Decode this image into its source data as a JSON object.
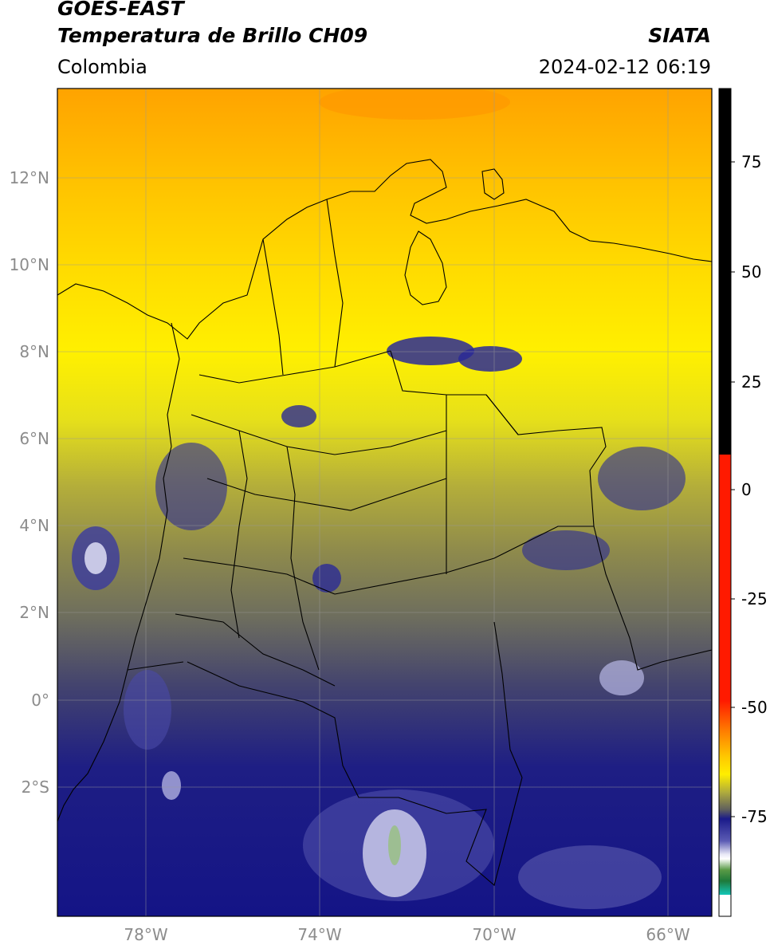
{
  "header": {
    "satellite": "GOES-EAST",
    "product": "Temperatura de Brillo CH09",
    "agency": "SIATA",
    "region": "Colombia",
    "datetime": "2024-02-12 06:19"
  },
  "axes": {
    "lat_labels": [
      "12°N",
      "10°N",
      "8°N",
      "6°N",
      "4°N",
      "2°N",
      "0°",
      "2°S"
    ],
    "lon_labels": [
      "78°W",
      "74°W",
      "70°W",
      "66°W"
    ]
  },
  "colorbar": {
    "labels": [
      "75",
      "50",
      "25",
      "0",
      "-25",
      "-50",
      "-75"
    ],
    "colors": {
      "black": "#000000",
      "red": "#ff1a00",
      "orange": "#ff9a00",
      "yellow": "#ffee00",
      "olive": "#8a8a3c",
      "gray": "#555555",
      "navy": "#1a1a8a",
      "light_blue": "#c8c8ee",
      "white": "#ffffff",
      "green": "#2a8a2a",
      "cyan": "#10dcdc"
    }
  }
}
